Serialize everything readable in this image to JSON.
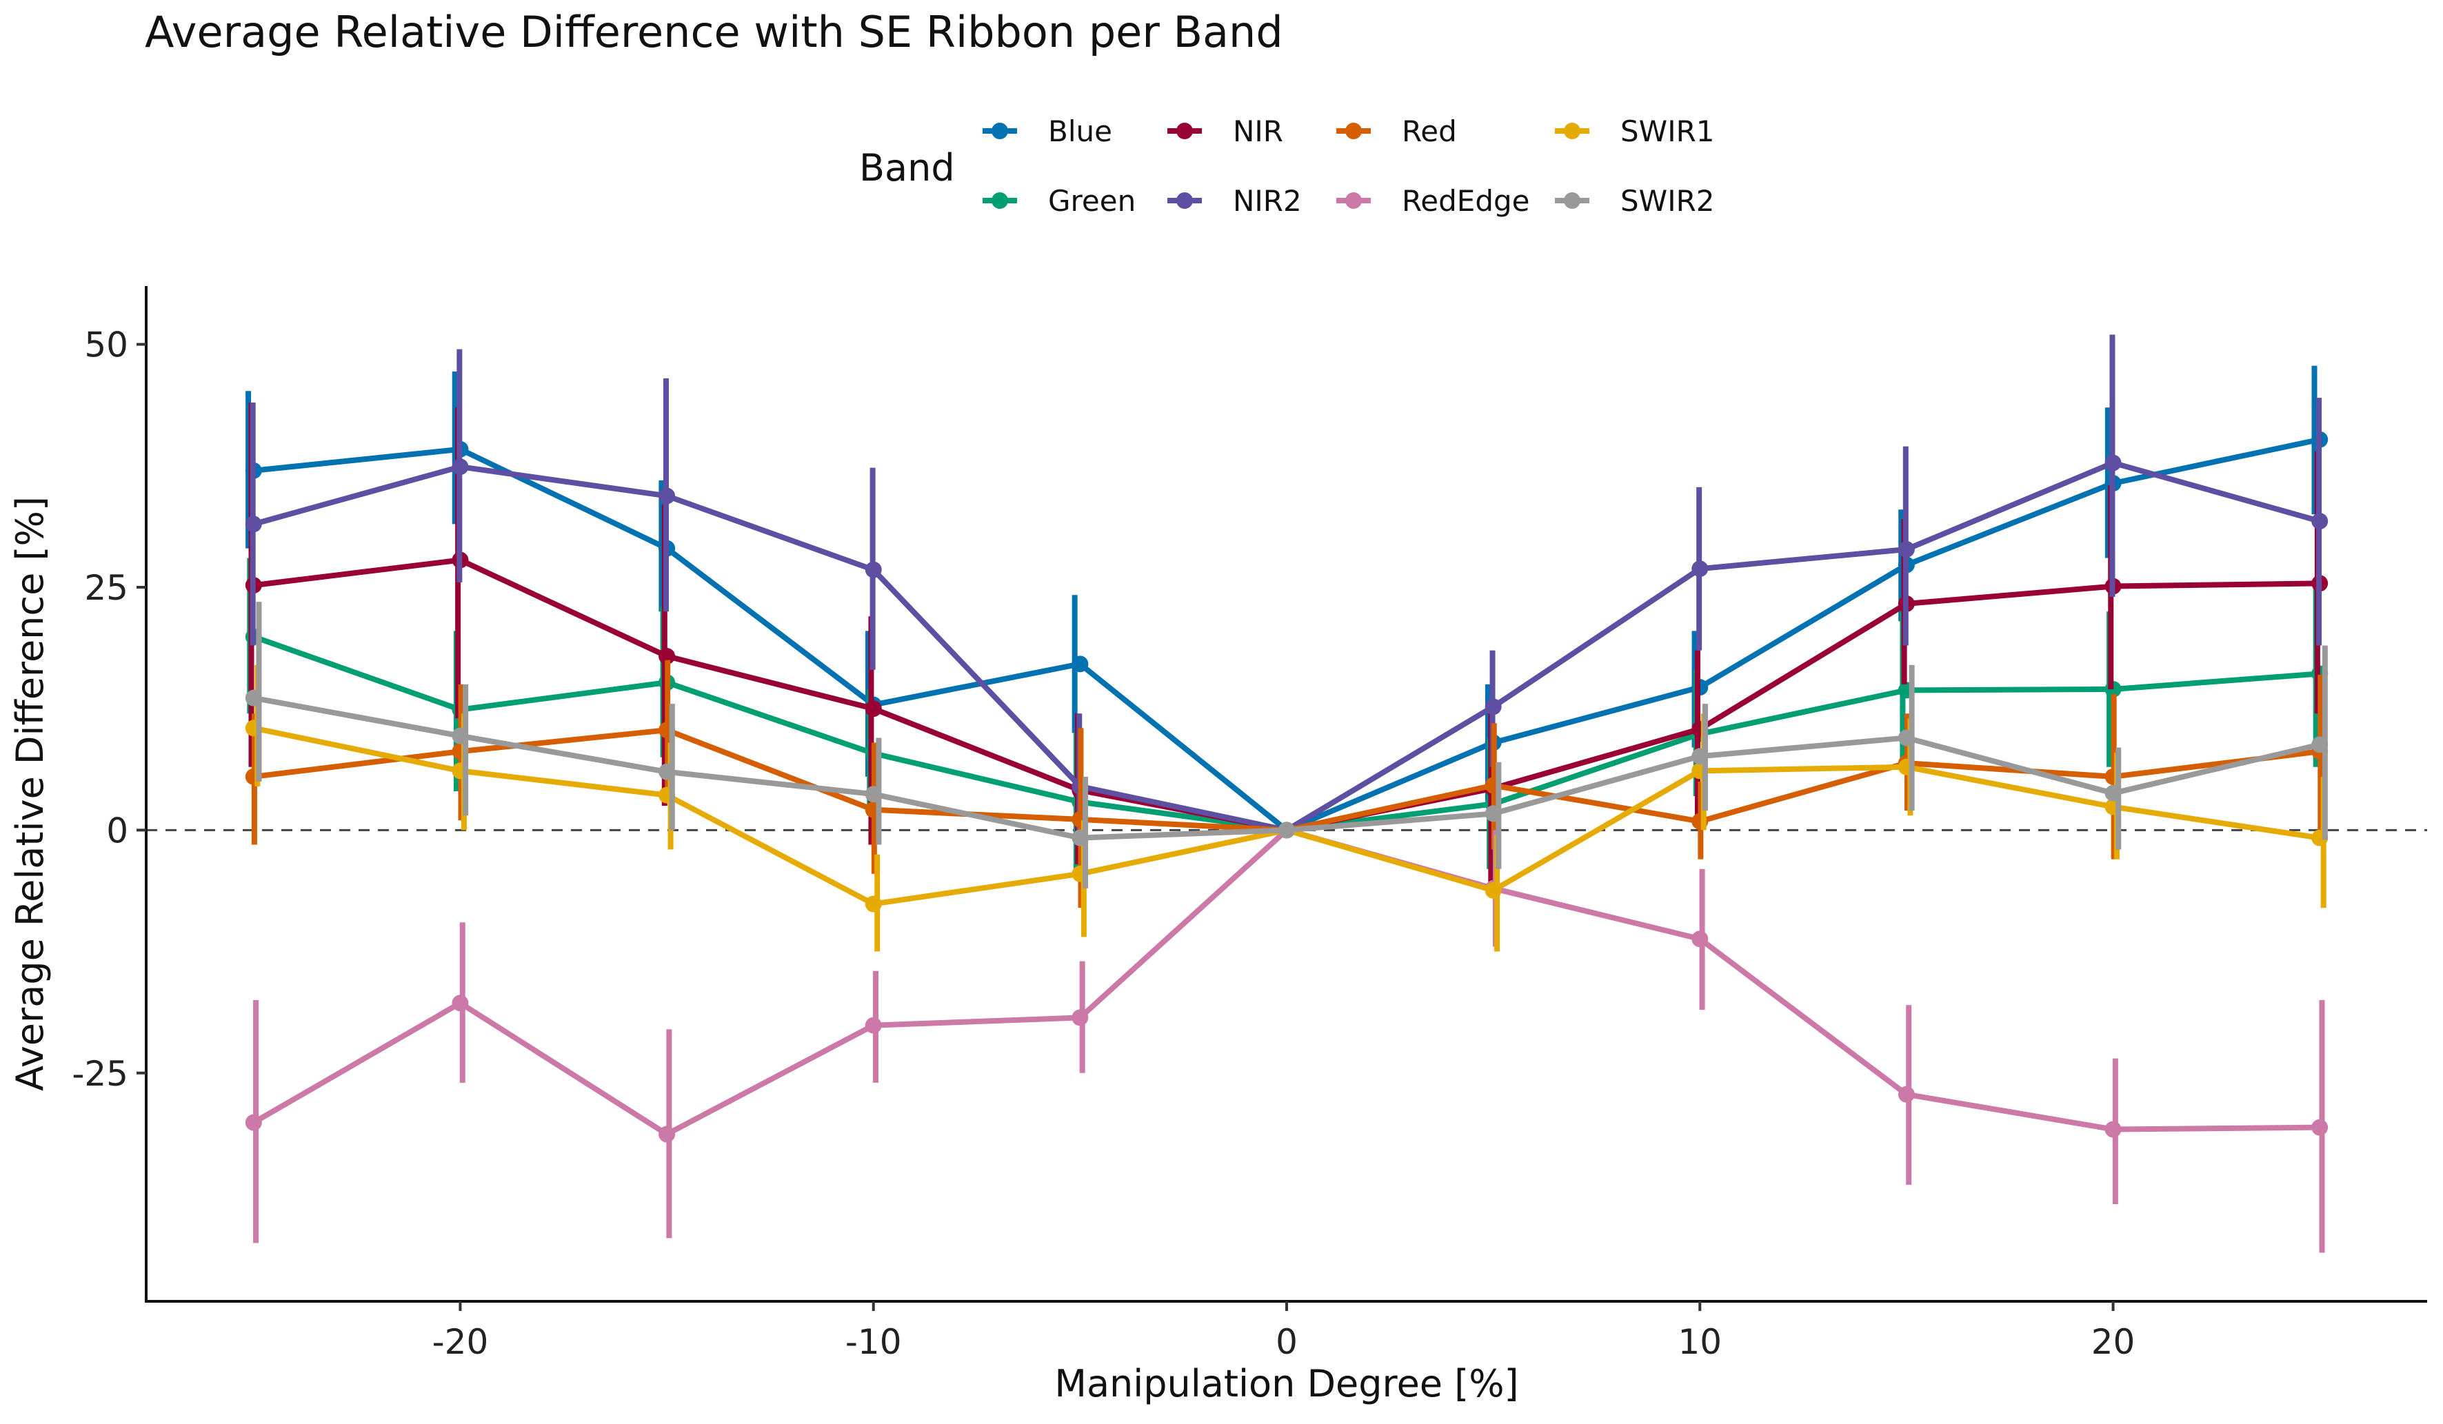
{
  "chart_data": {
    "type": "line",
    "title": "Average Relative Difference with SE Ribbon per Band",
    "xlabel": "Manipulation Degree [%]",
    "ylabel": "Average Relative Difference [%]",
    "legend_title": "Band",
    "legend_position": "top",
    "x": [
      -25,
      -20,
      -15,
      -10,
      -5,
      0,
      5,
      10,
      15,
      20,
      25
    ],
    "xlim": [
      -27.6,
      27.6
    ],
    "ylim": [
      -48.5,
      56
    ],
    "x_ticks": [
      -20,
      -10,
      0,
      10,
      20
    ],
    "y_ticks": [
      -25,
      0,
      25,
      50
    ],
    "x_tick_labels": [
      "-20",
      "-10",
      "0",
      "10",
      "20"
    ],
    "y_tick_labels": [
      "-25",
      "0",
      "25",
      "50"
    ],
    "reference_line": {
      "y": 0,
      "style": "dashed"
    },
    "grid": false,
    "series": [
      {
        "name": "Blue",
        "color": "#0072B2",
        "values": [
          37,
          39.2,
          29,
          12.9,
          17.1,
          0,
          9,
          14.7,
          27.3,
          35.7,
          40.2
        ],
        "err_low": [
          29,
          31.5,
          22.5,
          5.5,
          10,
          0,
          3,
          8.5,
          21.5,
          28,
          32.5
        ],
        "err_high": [
          45.2,
          47.2,
          36,
          20.5,
          24.2,
          0,
          15,
          20.5,
          33,
          43.5,
          47.8
        ]
      },
      {
        "name": "Green",
        "color": "#009E73",
        "values": [
          19.9,
          12.4,
          15.2,
          7.9,
          2.9,
          0,
          2.7,
          9.9,
          14.4,
          14.5,
          16.1
        ],
        "err_low": [
          12,
          4,
          7.5,
          1.5,
          -4,
          0,
          -4,
          3.5,
          6.5,
          6.5,
          6.5
        ],
        "err_high": [
          28,
          20.5,
          23,
          14.5,
          10,
          0,
          9.5,
          16.5,
          22.5,
          22.5,
          25.5
        ]
      },
      {
        "name": "NIR",
        "color": "#990033",
        "values": [
          25.2,
          27.8,
          17.9,
          12.5,
          4.1,
          0,
          4.3,
          10.4,
          23.3,
          25.1,
          25.4
        ],
        "err_low": [
          6.5,
          11.5,
          2.5,
          -1.5,
          -3.5,
          0,
          -6,
          1,
          15,
          14.5,
          12
        ],
        "err_high": [
          44,
          43.5,
          33.5,
          22,
          12,
          0,
          12,
          18.5,
          32,
          35.5,
          39
        ]
      },
      {
        "name": "NIR2",
        "color": "#5E4FA2",
        "values": [
          31.5,
          37.4,
          34.4,
          26.8,
          4.5,
          0,
          12.7,
          26.9,
          28.9,
          37.8,
          31.8
        ],
        "err_low": [
          19,
          25.5,
          22.5,
          16.5,
          -1.5,
          0,
          6.5,
          18.5,
          19,
          24,
          19
        ],
        "err_high": [
          44,
          49.5,
          46.5,
          37.3,
          12,
          0,
          18.5,
          35.3,
          39.5,
          51,
          44.5
        ]
      },
      {
        "name": "Red",
        "color": "#D55E00",
        "values": [
          5.5,
          8.1,
          10.3,
          2.1,
          1.1,
          0,
          4.6,
          0.9,
          6.9,
          5.5,
          8.1
        ],
        "err_low": [
          -1.5,
          1,
          3,
          -4.5,
          -8,
          0,
          -2,
          -3,
          2,
          -3,
          -1
        ],
        "err_high": [
          12,
          15,
          17.5,
          9,
          10.5,
          0,
          11,
          5,
          12,
          14,
          16
        ]
      },
      {
        "name": "RedEdge",
        "color": "#CC79A7",
        "values": [
          -30.1,
          -17.8,
          -31.3,
          -20.1,
          -19.3,
          0,
          -6,
          -11.2,
          -27.2,
          -30.8,
          -30.6
        ],
        "err_low": [
          -42.5,
          -26,
          -42,
          -26,
          -25,
          0,
          -12,
          -18.5,
          -36.5,
          -38.5,
          -43.5
        ],
        "err_high": [
          -17.5,
          -9.5,
          -20.5,
          -14.5,
          -13.5,
          0,
          0,
          -4,
          -18,
          -23.5,
          -17.5
        ]
      },
      {
        "name": "SWIR1",
        "color": "#E6AB02",
        "values": [
          10.5,
          6.1,
          3.6,
          -7.6,
          -4.5,
          0,
          -6.2,
          6.1,
          6.5,
          2.4,
          -0.8
        ],
        "err_low": [
          4.5,
          0,
          -2,
          -12.5,
          -11,
          0,
          -12.5,
          0,
          1.5,
          -3,
          -8
        ],
        "err_high": [
          17,
          12,
          9,
          -2.5,
          1,
          0,
          -0.5,
          12,
          11.5,
          8,
          5.5
        ]
      },
      {
        "name": "SWIR2",
        "color": "#999999",
        "values": [
          13.6,
          9.7,
          6,
          3.7,
          -0.8,
          0,
          1.7,
          7.6,
          9.5,
          3.8,
          8.8
        ],
        "err_low": [
          5,
          1.5,
          0,
          -1.5,
          -6,
          0,
          -4,
          2,
          2,
          -2,
          -1
        ],
        "err_high": [
          23.5,
          15,
          13,
          9.5,
          5.5,
          0,
          7,
          13,
          17,
          8.5,
          19
        ]
      }
    ]
  }
}
